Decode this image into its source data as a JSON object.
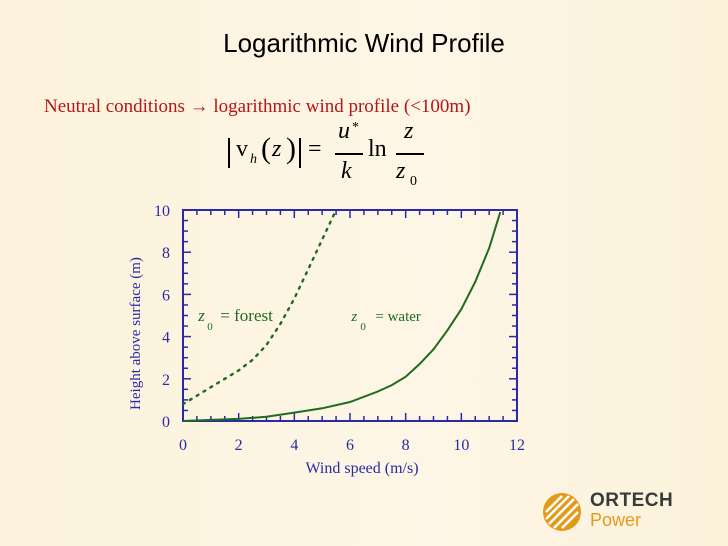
{
  "slide": {
    "title": "Logarithmic Wind Profile",
    "subtitle": "Neutral conditions → logarithmic wind profile (<100m)"
  },
  "formula": {
    "v": "v",
    "h": "h",
    "z_arg": "z",
    "equals": "=",
    "u_star": "u",
    "star": "*",
    "k": "k",
    "ln": "ln",
    "z_num": "z",
    "z_den": "z",
    "zero": "0"
  },
  "logo": {
    "word1": "ORTECH",
    "word2": "Power",
    "colors": {
      "text": "#3a3a3a",
      "accent": "#e39a1a"
    }
  },
  "colors": {
    "axis": "#2a2aa8",
    "curve": "#1f6b1f",
    "subtitle": "#b81515"
  },
  "chart_data": {
    "type": "line",
    "xlabel": "Wind speed (m/s)",
    "ylabel": "Height above surface (m)",
    "xlim": [
      0,
      12
    ],
    "ylim": [
      0,
      10
    ],
    "xticks": [
      "0",
      "2",
      "4",
      "6",
      "8",
      "10",
      "12"
    ],
    "yticks": [
      "0",
      "2",
      "4",
      "6",
      "8",
      "10"
    ],
    "grid": false,
    "series": [
      {
        "style": "dotted",
        "x": [
          0.0,
          0.5,
          1.0,
          1.5,
          2.0,
          2.5,
          3.0,
          3.5,
          4.0,
          4.5,
          5.0,
          5.5
        ],
        "y": [
          0.8,
          1.2,
          1.6,
          2.0,
          2.4,
          2.9,
          3.6,
          4.6,
          5.8,
          7.2,
          8.6,
          10.0
        ]
      },
      {
        "style": "solid",
        "x": [
          0.0,
          1.0,
          2.0,
          3.0,
          4.0,
          5.0,
          6.0,
          7.0,
          7.5,
          8.0,
          8.5,
          9.0,
          9.5,
          10.0,
          10.5,
          11.0,
          11.4
        ],
        "y": [
          0.0,
          0.05,
          0.1,
          0.2,
          0.4,
          0.6,
          0.9,
          1.4,
          1.7,
          2.1,
          2.7,
          3.4,
          4.3,
          5.3,
          6.6,
          8.2,
          9.9
        ]
      }
    ],
    "annotations": [
      {
        "base": "z",
        "sub": "0",
        "text": "= forest",
        "x": 0.55,
        "y": 4.75
      },
      {
        "base": "z",
        "sub": "0",
        "text": "= water",
        "x": 6.05,
        "y": 4.75
      }
    ]
  }
}
